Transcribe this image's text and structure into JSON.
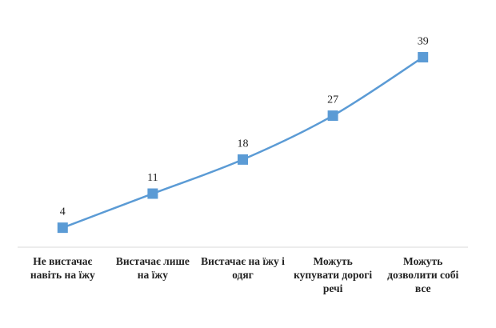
{
  "chart_data": {
    "type": "line",
    "categories": [
      "Не вистачає навіть на їжу",
      "Вистачає лише на їжу",
      "Вистачає на їжу і одяг",
      "Можуть купувати дорогі речі",
      "Можуть дозволити собі все"
    ],
    "values": [
      4,
      11,
      18,
      27,
      39
    ],
    "color": "#5b9bd5",
    "ylim": [
      0,
      45
    ]
  }
}
